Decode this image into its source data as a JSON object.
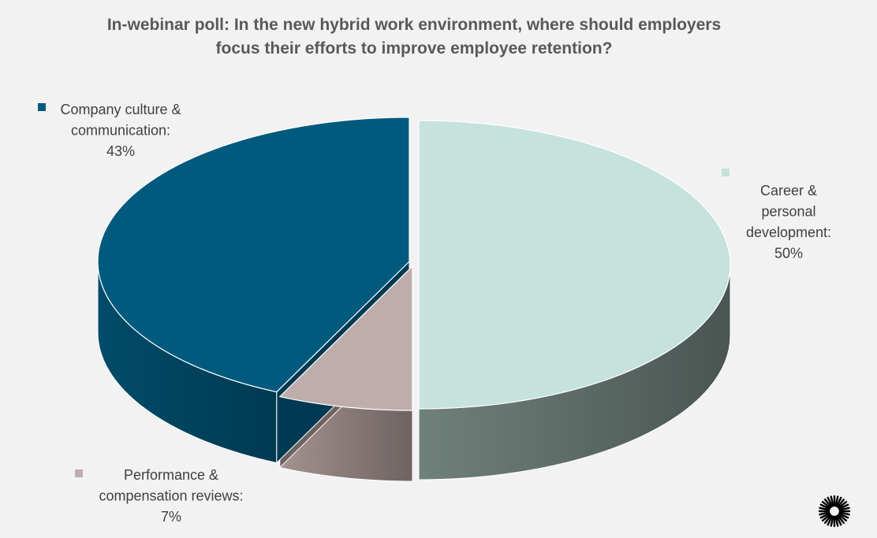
{
  "chart_data": {
    "type": "pie",
    "style": "3d-exploded",
    "title_lines": [
      "In-webinar poll: In the new hybrid work environment, where should employers",
      "focus their efforts to improve employee retention?"
    ],
    "slices": [
      {
        "name": "Career & personal development",
        "value": 50,
        "color": "#c5e2dc",
        "label_lines": [
          "Career &",
          "personal",
          "development:",
          "50%"
        ]
      },
      {
        "name": "Performance & compensation reviews",
        "value": 7,
        "color": "#bfadab",
        "label_lines": [
          "Performance &",
          "compensation reviews:",
          "7%"
        ]
      },
      {
        "name": "Company culture & communication",
        "value": 43,
        "color": "#005a7d",
        "label_lines": [
          "Company culture &",
          "communication:",
          "43%"
        ]
      }
    ],
    "side_colors": {
      "Career & personal development": [
        "#6f817c",
        "#4a5552"
      ],
      "Performance & compensation reviews": [
        "#a39290",
        "#6e6362"
      ],
      "Company culture & communication": [
        "#004c6a",
        "#003a52"
      ]
    },
    "legend": "none",
    "data_labels": "outside with color markers"
  },
  "logo": {
    "name": "starburst-logo",
    "color": "#000000"
  }
}
